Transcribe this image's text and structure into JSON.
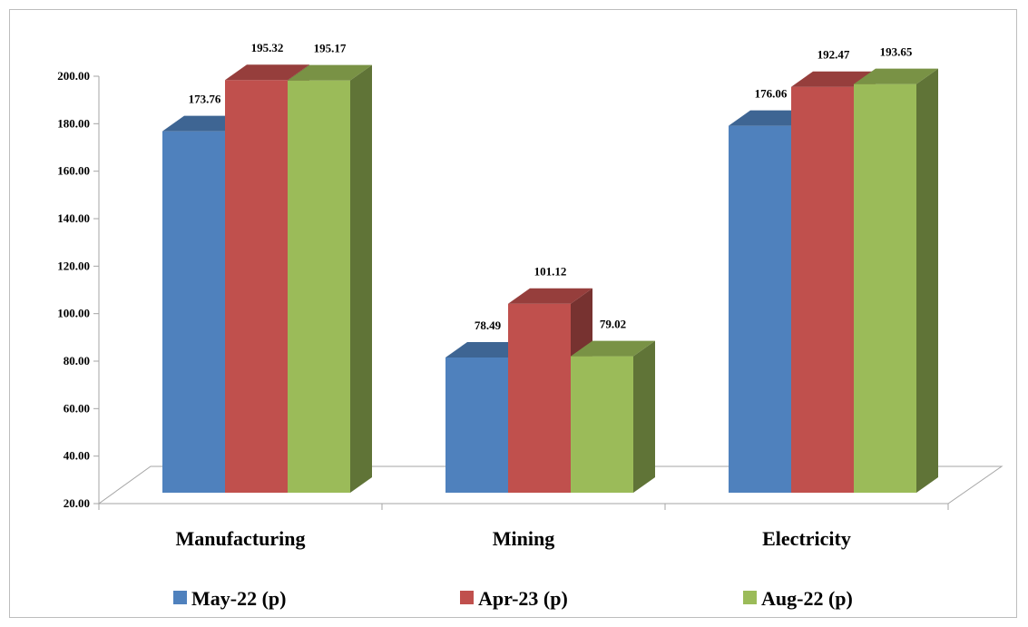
{
  "chart_data": {
    "type": "bar",
    "categories": [
      "Manufacturing",
      "Mining",
      "Electricity"
    ],
    "series": [
      {
        "name": "May-22 (p)",
        "values": [
          173.76,
          78.49,
          176.06
        ],
        "color": "#4f81bd"
      },
      {
        "name": "Apr-23 (p)",
        "values": [
          195.32,
          101.12,
          192.47
        ],
        "color": "#c0504d"
      },
      {
        "name": "Aug-22 (p)",
        "values": [
          195.17,
          79.02,
          193.65
        ],
        "color": "#9bbb59"
      }
    ],
    "ylim": [
      20,
      200
    ],
    "yticks": [
      "20.00",
      "40.00",
      "60.00",
      "80.00",
      "100.00",
      "120.00",
      "140.00",
      "160.00",
      "180.00",
      "200.00"
    ],
    "title": "",
    "xlabel": "",
    "ylabel": "",
    "legend_position": "bottom",
    "three_d": true
  }
}
